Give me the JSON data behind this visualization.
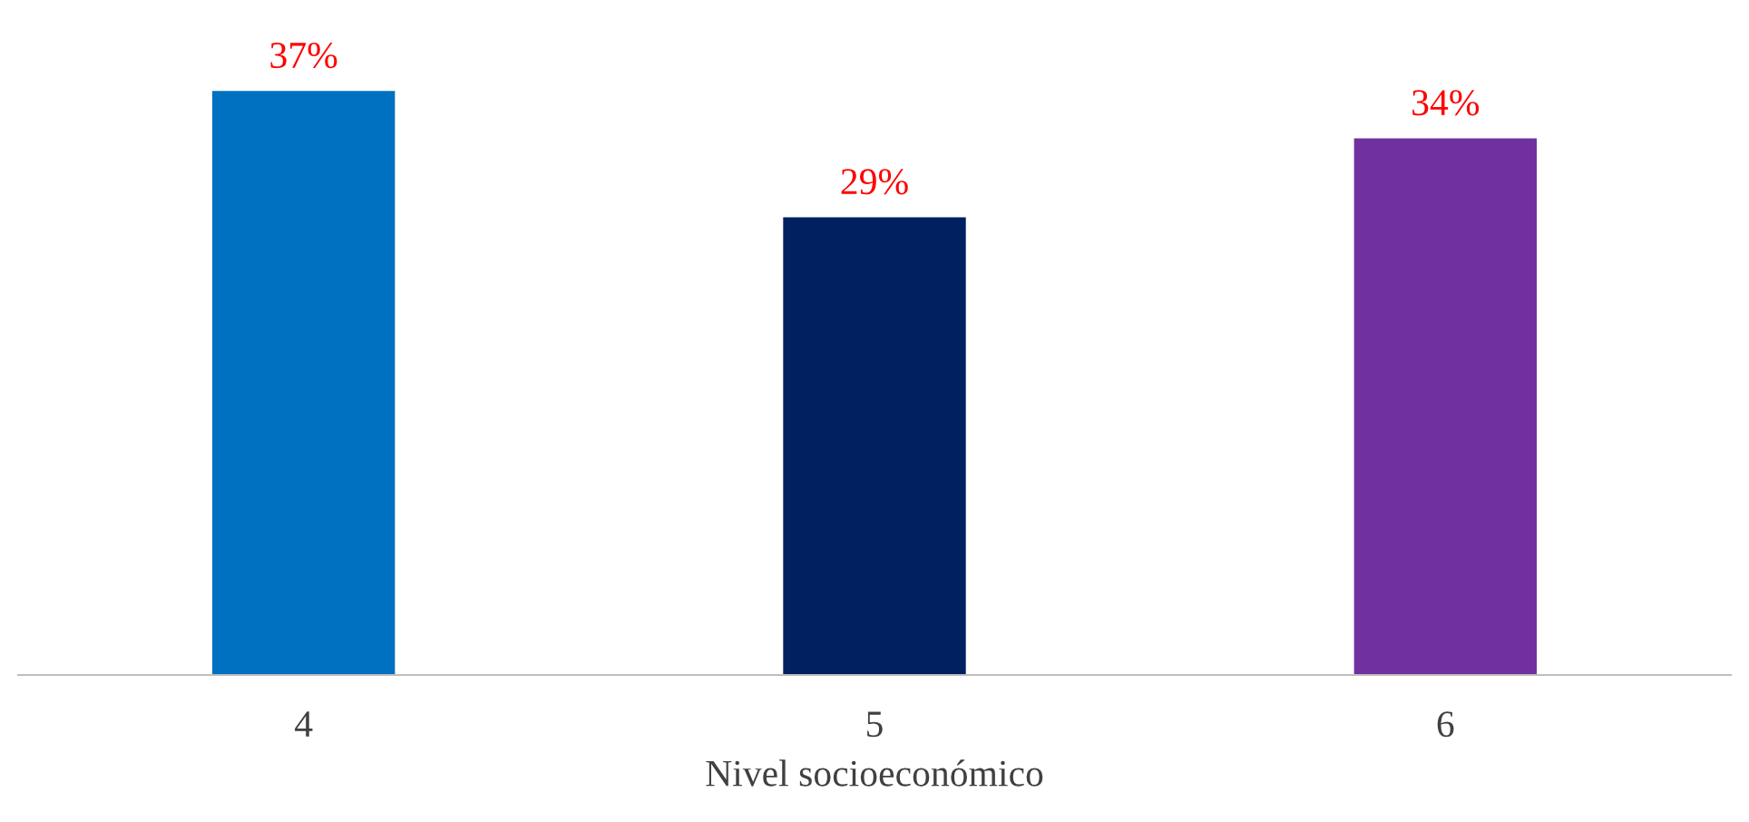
{
  "chart_data": {
    "type": "bar",
    "xlabel": "Nivel socioeconómico",
    "categories": [
      "4",
      "5",
      "6"
    ],
    "values": [
      37,
      29,
      34
    ],
    "colors": [
      "#0070c0",
      "#002060",
      "#7030a0"
    ],
    "value_labels": [
      "37%",
      "29%",
      "34%"
    ],
    "tick_labels": "x",
    "grid": false,
    "legend": false
  }
}
